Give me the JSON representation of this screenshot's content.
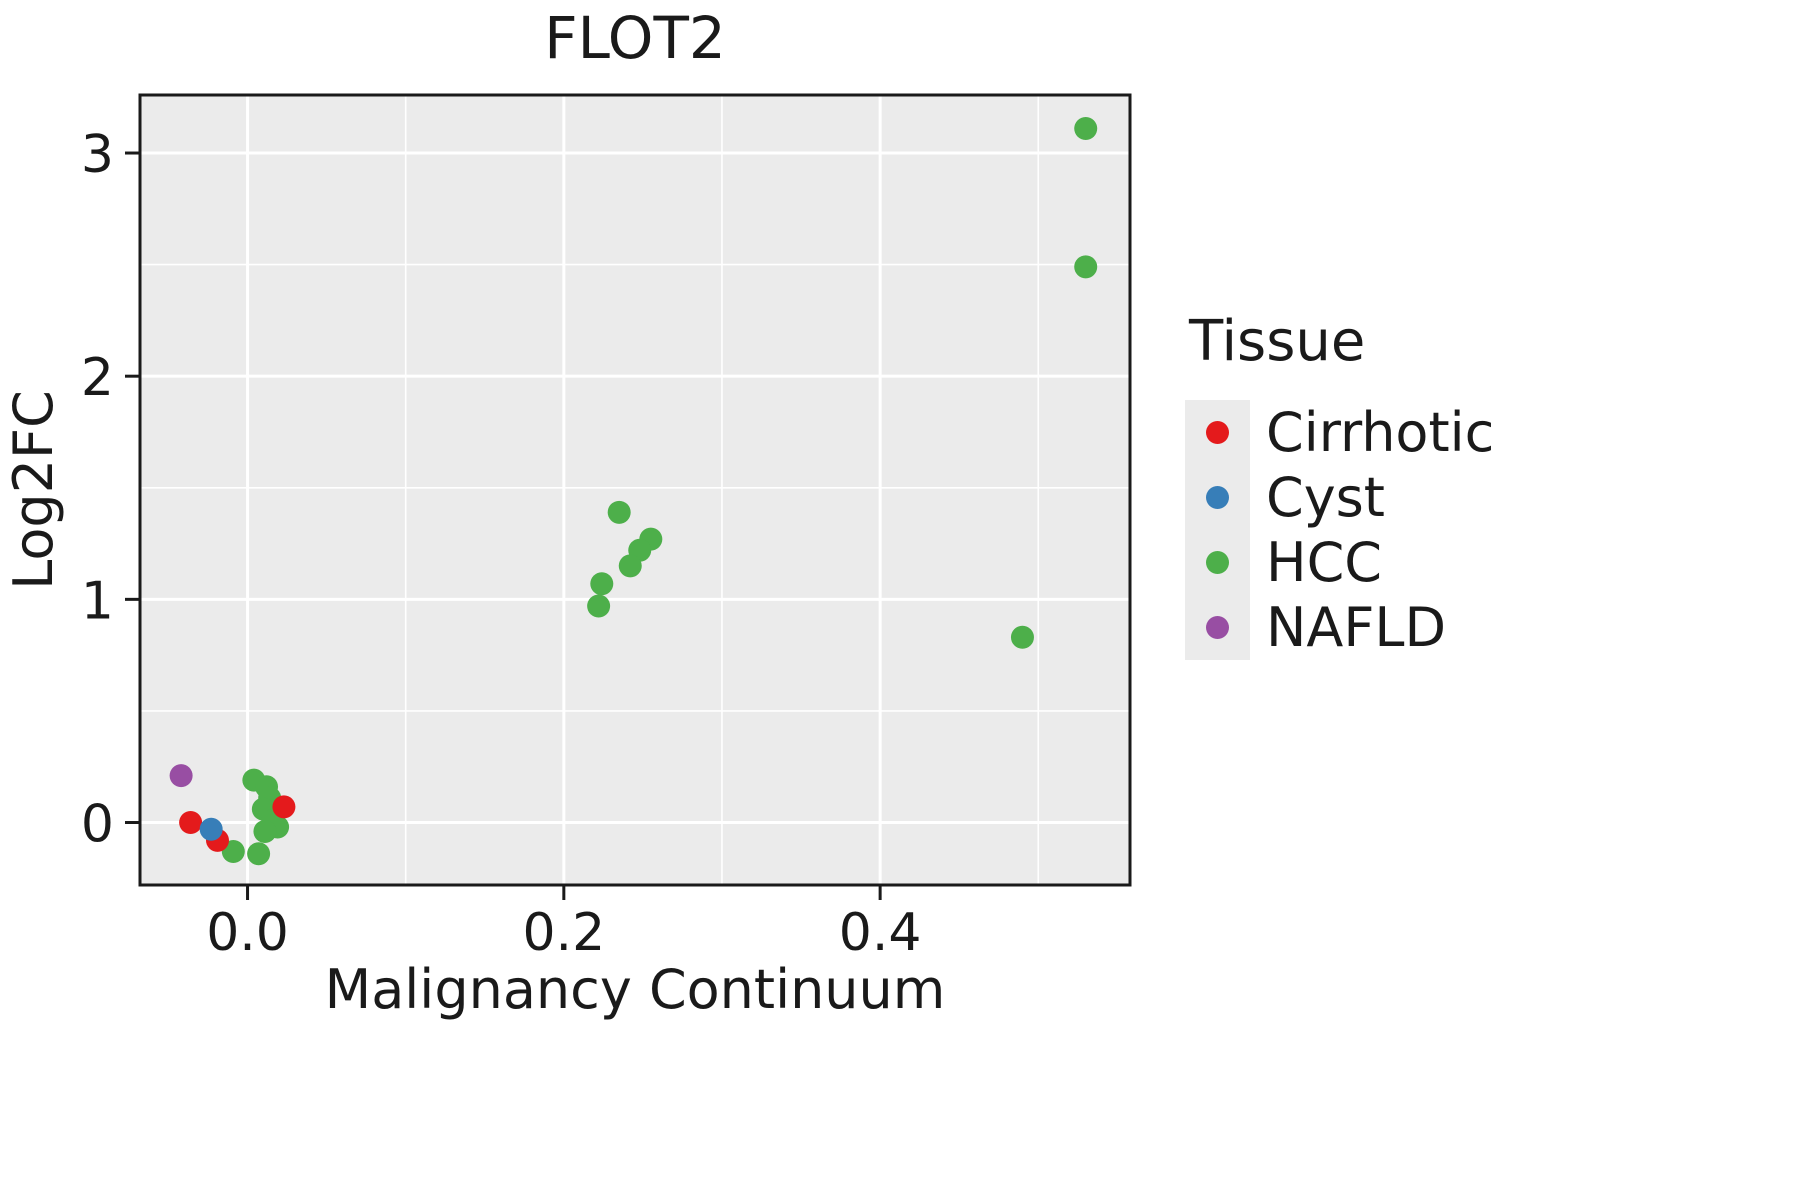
{
  "chart_data": {
    "type": "scatter",
    "title": "FLOT2",
    "xlabel": "Malignancy Continuum",
    "ylabel": "Log2FC",
    "legend_title": "Tissue",
    "xlim": [
      -0.068,
      0.558
    ],
    "ylim": [
      -0.28,
      3.26
    ],
    "xticks": [
      0.0,
      0.2,
      0.4
    ],
    "xtick_labels": [
      "0.0",
      "0.2",
      "0.4"
    ],
    "yticks": [
      0,
      1,
      2,
      3
    ],
    "ytick_labels": [
      "0",
      "1",
      "2",
      "3"
    ],
    "x_minor_ticks": [
      0.1,
      0.3,
      0.5
    ],
    "y_minor_ticks": [
      0.5,
      1.5,
      2.5
    ],
    "grid": true,
    "panel_bg": "#EBEBEB",
    "grid_color": "#FFFFFF",
    "axis_color": "#1a1a1a",
    "legend_position": "right",
    "series": [
      {
        "name": "Cirrhotic",
        "color": "#E41A1C",
        "points": [
          [
            -0.036,
            0.0
          ],
          [
            -0.019,
            -0.08
          ],
          [
            0.023,
            0.07
          ]
        ]
      },
      {
        "name": "Cyst",
        "color": "#377EB8",
        "points": [
          [
            -0.023,
            -0.03
          ]
        ]
      },
      {
        "name": "HCC",
        "color": "#4DAF4A",
        "points": [
          [
            0.53,
            3.11
          ],
          [
            0.53,
            2.49
          ],
          [
            0.235,
            1.39
          ],
          [
            0.255,
            1.27
          ],
          [
            0.248,
            1.22
          ],
          [
            0.242,
            1.15
          ],
          [
            0.224,
            1.07
          ],
          [
            0.222,
            0.97
          ],
          [
            0.49,
            0.83
          ],
          [
            0.004,
            0.19
          ],
          [
            0.012,
            0.16
          ],
          [
            0.014,
            0.11
          ],
          [
            0.01,
            0.06
          ],
          [
            0.016,
            0.01
          ],
          [
            0.019,
            -0.02
          ],
          [
            0.011,
            -0.04
          ],
          [
            -0.009,
            -0.13
          ],
          [
            0.007,
            -0.14
          ]
        ]
      },
      {
        "name": "NAFLD",
        "color": "#984EA3",
        "points": [
          [
            -0.042,
            0.21
          ]
        ]
      }
    ]
  }
}
